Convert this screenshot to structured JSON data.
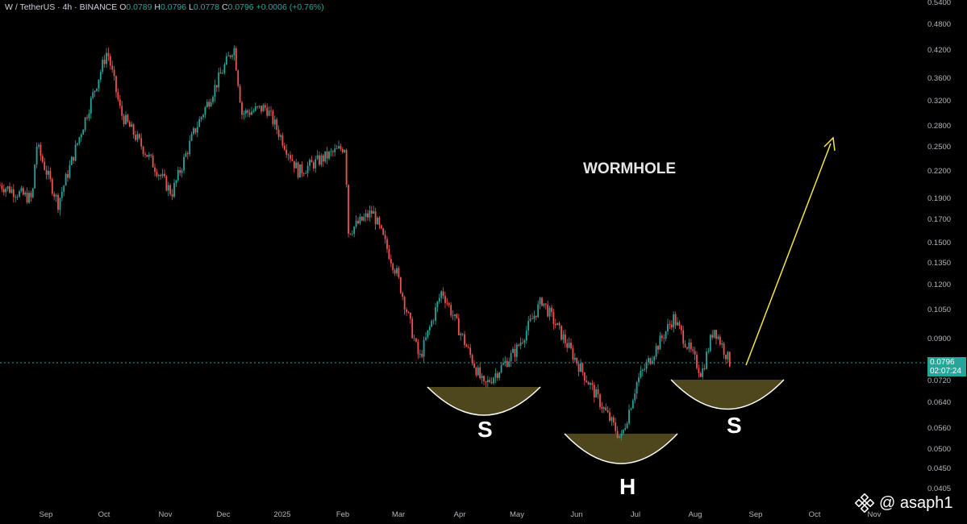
{
  "header": {
    "symbol": "W / TetherUS · 4h · BINANCE",
    "o_label": "O",
    "o_value": "0.0789",
    "h_label": "H",
    "h_value": "0.0796",
    "l_label": "L",
    "l_value": "0.0778",
    "c_label": "C",
    "c_value": "0.0796",
    "change": "+0.0006 (+0.76%)"
  },
  "price_axis": [
    "0.5400",
    "0.4800",
    "0.4200",
    "0.3600",
    "0.3200",
    "0.2800",
    "0.2500",
    "0.2200",
    "0.1900",
    "0.1700",
    "0.1500",
    "0.1350",
    "0.1200",
    "0.1050",
    "0.0900",
    "0.0720",
    "0.0640",
    "0.0560",
    "0.0500",
    "0.0450",
    "0.0405"
  ],
  "current_price": {
    "price": "0.0796",
    "countdown": "02:07:24"
  },
  "time_axis": [
    "Sep",
    "Oct",
    "Nov",
    "Dec",
    "2025",
    "Feb",
    "Mar",
    "Apr",
    "May",
    "Jun",
    "Jul",
    "Aug",
    "Sep",
    "Oct",
    "Nov"
  ],
  "annotations": {
    "title": "WORMHOLE",
    "left_shoulder": "S",
    "head": "H",
    "right_shoulder": "S"
  },
  "attribution": "@ asaph1",
  "colors": {
    "up": "#26a69a",
    "down": "#ef5350",
    "bowl_fill": "#5c5422",
    "arrow": "#f5e642",
    "price_line": "#26a69a"
  },
  "chart_data": {
    "type": "candlestick",
    "title": "W / TetherUS · 4h · BINANCE",
    "y_scale": "log",
    "ylim": [
      0.0405,
      0.54
    ],
    "x_range": [
      "Aug 2024",
      "Nov 2025"
    ],
    "approx_price_path": [
      {
        "x": "Aug 2024",
        "y": 0.205
      },
      {
        "x": "Sep 2024",
        "y": 0.19
      },
      {
        "x": "Sep 2024",
        "y": 0.255
      },
      {
        "x": "Sep 2024",
        "y": 0.186
      },
      {
        "x": "Oct 2024",
        "y": 0.42
      },
      {
        "x": "Oct 2024",
        "y": 0.3
      },
      {
        "x": "Nov 2024",
        "y": 0.196
      },
      {
        "x": "Nov 2024",
        "y": 0.27
      },
      {
        "x": "Dec 2024",
        "y": 0.43
      },
      {
        "x": "Dec 2024",
        "y": 0.3
      },
      {
        "x": "Jan 2025",
        "y": 0.31
      },
      {
        "x": "Jan 2025",
        "y": 0.22
      },
      {
        "x": "Feb 2025",
        "y": 0.252
      },
      {
        "x": "Feb 2025",
        "y": 0.16
      },
      {
        "x": "Feb 2025",
        "y": 0.178
      },
      {
        "x": "Mar 2025",
        "y": 0.128
      },
      {
        "x": "Mar 2025",
        "y": 0.081
      },
      {
        "x": "Mar 2025",
        "y": 0.117
      },
      {
        "x": "Apr 2025",
        "y": 0.07
      },
      {
        "x": "May 2025",
        "y": 0.085
      },
      {
        "x": "May 2025",
        "y": 0.111
      },
      {
        "x": "Jun 2025",
        "y": 0.08
      },
      {
        "x": "Jun 2025",
        "y": 0.053
      },
      {
        "x": "Jul 2025",
        "y": 0.072
      },
      {
        "x": "Jul 2025",
        "y": 0.101
      },
      {
        "x": "Aug 2025",
        "y": 0.075
      },
      {
        "x": "Aug 2025",
        "y": 0.096
      },
      {
        "x": "Aug 2025",
        "y": 0.0796
      }
    ],
    "current_price": 0.0796,
    "pattern": "inverse head and shoulders",
    "projection_target_approx": 0.255
  }
}
